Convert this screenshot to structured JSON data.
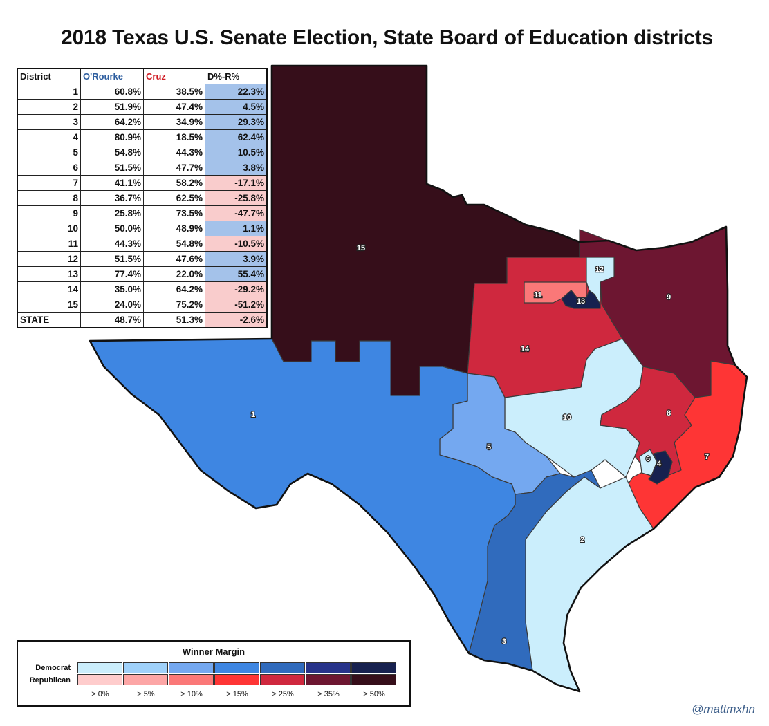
{
  "title": "2018 Texas U.S. Senate Election, State Board of Education districts",
  "table": {
    "headers": [
      "District",
      "O'Rourke",
      "Cruz",
      "D%-R%"
    ],
    "header_colors": [
      "#111111",
      "#2f5fa0",
      "#d01c24",
      "#111111"
    ],
    "rows": [
      {
        "district": "1",
        "orourke": "60.8%",
        "cruz": "38.5%",
        "margin": "22.3%",
        "winner": "D"
      },
      {
        "district": "2",
        "orourke": "51.9%",
        "cruz": "47.4%",
        "margin": "4.5%",
        "winner": "D"
      },
      {
        "district": "3",
        "orourke": "64.2%",
        "cruz": "34.9%",
        "margin": "29.3%",
        "winner": "D"
      },
      {
        "district": "4",
        "orourke": "80.9%",
        "cruz": "18.5%",
        "margin": "62.4%",
        "winner": "D"
      },
      {
        "district": "5",
        "orourke": "54.8%",
        "cruz": "44.3%",
        "margin": "10.5%",
        "winner": "D"
      },
      {
        "district": "6",
        "orourke": "51.5%",
        "cruz": "47.7%",
        "margin": "3.8%",
        "winner": "D"
      },
      {
        "district": "7",
        "orourke": "41.1%",
        "cruz": "58.2%",
        "margin": "-17.1%",
        "winner": "R"
      },
      {
        "district": "8",
        "orourke": "36.7%",
        "cruz": "62.5%",
        "margin": "-25.8%",
        "winner": "R"
      },
      {
        "district": "9",
        "orourke": "25.8%",
        "cruz": "73.5%",
        "margin": "-47.7%",
        "winner": "R"
      },
      {
        "district": "10",
        "orourke": "50.0%",
        "cruz": "48.9%",
        "margin": "1.1%",
        "winner": "D"
      },
      {
        "district": "11",
        "orourke": "44.3%",
        "cruz": "54.8%",
        "margin": "-10.5%",
        "winner": "R"
      },
      {
        "district": "12",
        "orourke": "51.5%",
        "cruz": "47.6%",
        "margin": "3.9%",
        "winner": "D"
      },
      {
        "district": "13",
        "orourke": "77.4%",
        "cruz": "22.0%",
        "margin": "55.4%",
        "winner": "D"
      },
      {
        "district": "14",
        "orourke": "35.0%",
        "cruz": "64.2%",
        "margin": "-29.2%",
        "winner": "R"
      },
      {
        "district": "15",
        "orourke": "24.0%",
        "cruz": "75.2%",
        "margin": "-51.2%",
        "winner": "R"
      }
    ],
    "state_row": {
      "district": "STATE",
      "orourke": "48.7%",
      "cruz": "51.3%",
      "margin": "-2.6%",
      "winner": "R"
    }
  },
  "map": {
    "district_labels": [
      "1",
      "2",
      "3",
      "4",
      "5",
      "6",
      "7",
      "8",
      "9",
      "10",
      "11",
      "12",
      "13",
      "14",
      "15"
    ],
    "district_colors": {
      "1": "#3e86e2",
      "2": "#cbeefc",
      "3": "#306bbd",
      "4": "#17214f",
      "5": "#74a8f0",
      "6": "#cbeefc",
      "7": "#fe3535",
      "8": "#cf283e",
      "9": "#6d1631",
      "10": "#cbeefc",
      "11": "#fa7878",
      "12": "#cbeefc",
      "13": "#17214f",
      "14": "#cf283e",
      "15": "#360e1a"
    }
  },
  "legend": {
    "title": "Winner Margin",
    "rows": [
      "Democrat",
      "Republican"
    ],
    "thresholds": [
      "> 0%",
      "> 5%",
      "> 10%",
      "> 15%",
      "> 25%",
      "> 35%",
      "> 50%"
    ],
    "democrat_colors": [
      "#cbeefc",
      "#9fd1fa",
      "#74a8f0",
      "#3e86e2",
      "#306bbd",
      "#27338a",
      "#17214f"
    ],
    "republican_colors": [
      "#fecccc",
      "#fca6a6",
      "#fa7878",
      "#fe3535",
      "#cf283e",
      "#6d1631",
      "#360e1a"
    ]
  },
  "credit": "@mattmxhn"
}
